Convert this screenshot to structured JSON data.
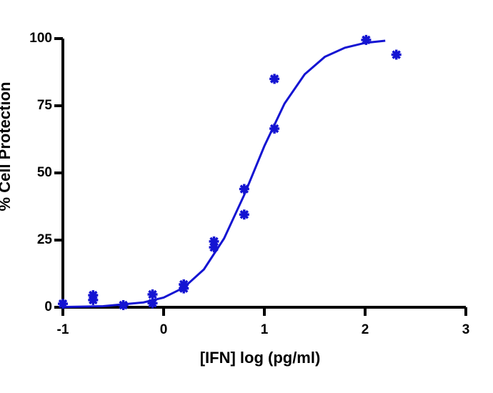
{
  "chart_data": {
    "type": "scatter-fit",
    "xlabel": "[IFN] log (pg/ml)",
    "ylabel": "% Cell Protection",
    "xlim": [
      -1,
      3
    ],
    "xticks": [
      -1,
      0,
      1,
      2,
      3
    ],
    "ylim": [
      0,
      100
    ],
    "yticks": [
      0,
      25,
      50,
      75,
      100
    ],
    "color": "#1414d2",
    "points": {
      "x": [
        -1,
        -0.7,
        -0.7,
        -0.4,
        -0.11,
        -0.11,
        0.2,
        0.2,
        0.5,
        0.5,
        0.8,
        0.8,
        1.1,
        1.1,
        2.01,
        2.31
      ],
      "y": [
        1.3,
        4.5,
        2.7,
        0.8,
        4.8,
        1.5,
        8.5,
        7,
        24.5,
        22.3,
        44,
        34.5,
        85,
        66.5,
        99.5,
        94
      ]
    },
    "curve": {
      "x": [
        -1,
        -0.6,
        -0.2,
        0,
        0.2,
        0.4,
        0.6,
        0.8,
        1.0,
        1.2,
        1.4,
        1.6,
        1.8,
        2.0,
        2.2
      ],
      "y": [
        0.1,
        0.4,
        1.8,
        3.6,
        7.3,
        14.1,
        25.6,
        41.8,
        60.0,
        75.8,
        86.7,
        93.2,
        96.6,
        98.4,
        99.2
      ]
    }
  }
}
